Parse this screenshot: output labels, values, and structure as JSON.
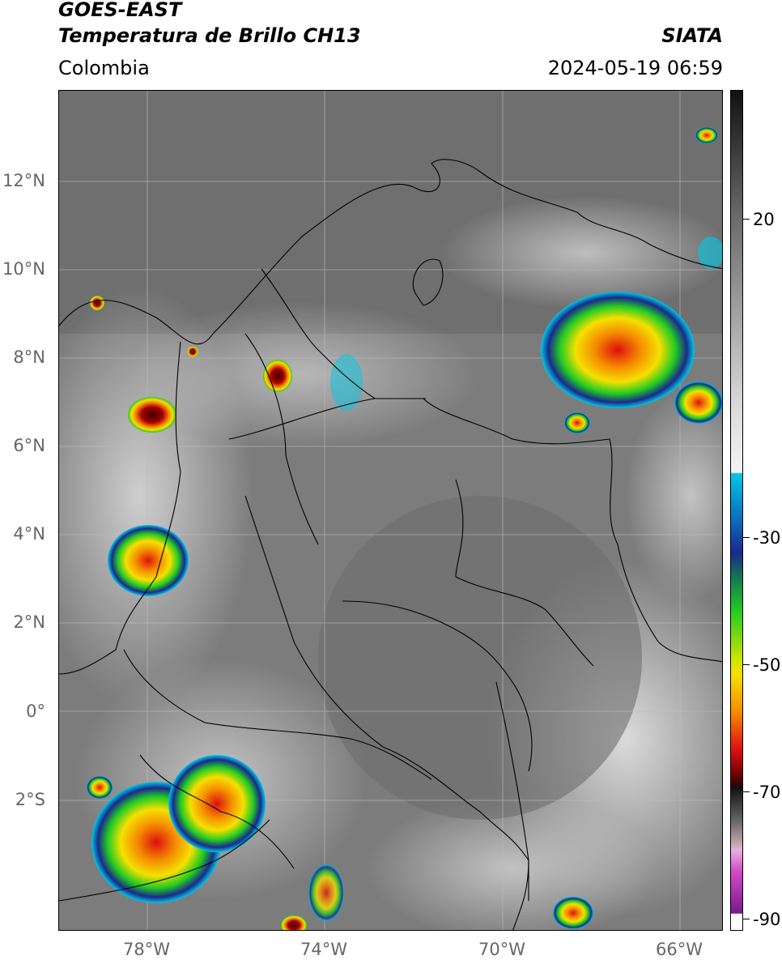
{
  "header": {
    "satellite": "GOES-EAST",
    "product": "Temperatura de Brillo CH13",
    "region": "Colombia",
    "organization": "SIATA",
    "datetime": "2024-05-19 06:59"
  },
  "map": {
    "lat_labels": [
      "12°N",
      "10°N",
      "8°N",
      "6°N",
      "4°N",
      "2°N",
      "0°",
      "2°S"
    ],
    "lon_labels": [
      "78°W",
      "74°W",
      "70°W",
      "66°W"
    ],
    "grid": true,
    "background": "grayscale infrared brightness temperature"
  },
  "colorbar": {
    "tick_labels": [
      "20",
      "-30",
      "-50",
      "-70",
      "-90"
    ],
    "colors": {
      "warm_gray_top": "#111111",
      "light_gray": "#f0f0f0",
      "cyan": "#00c8e6",
      "dark_blue": "#1a2a8c",
      "green": "#22cc22",
      "yellow": "#f5e000",
      "orange": "#f58c00",
      "red": "#dd1010",
      "dark_red": "#5a0000",
      "magenta": "#d24bc8",
      "purple": "#7a1a8c"
    }
  }
}
